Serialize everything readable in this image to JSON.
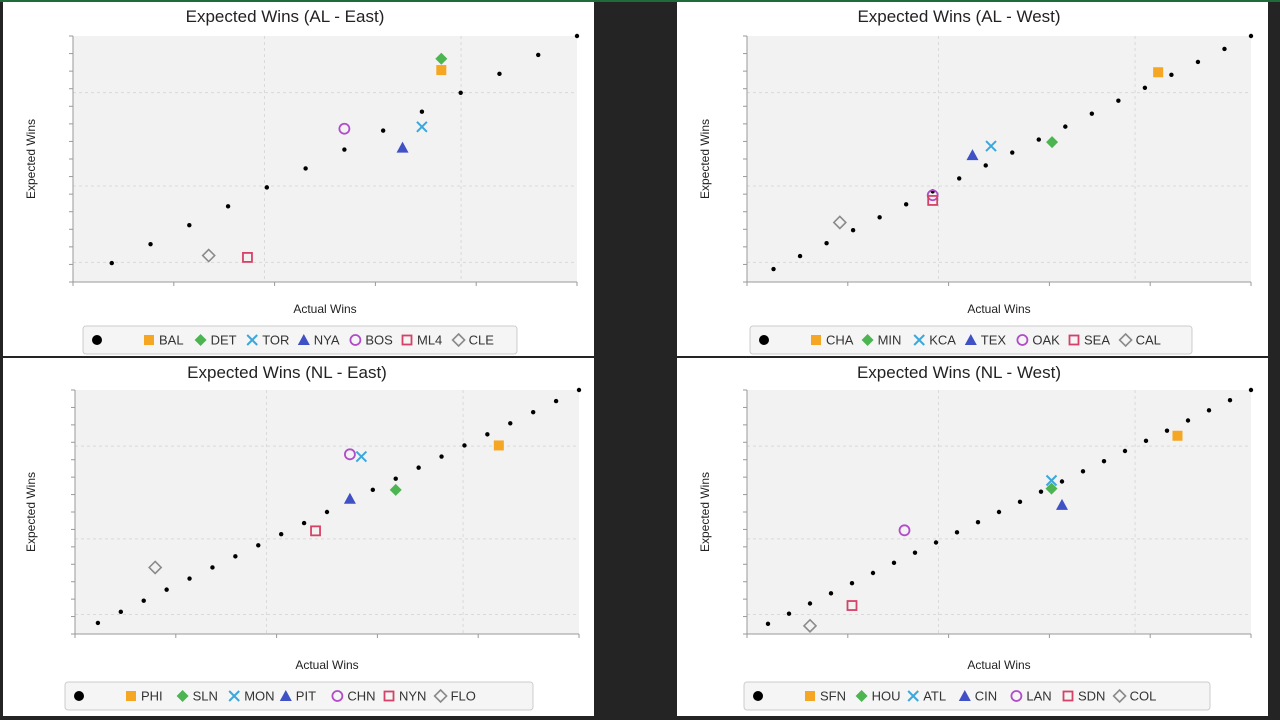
{
  "colors": {
    "background": "#ffffff",
    "plot_area": "#f2f2f2",
    "grid": "#d9d9d9",
    "dots": "#000000",
    "legend_border": "#cccccc",
    "legend_bg": "#f5f5f5",
    "series": {
      "square": "#f5a623",
      "diamond": "#4cb552",
      "x": "#3aa7dd",
      "triangle": "#3f51c5",
      "circle": "#b04cc8",
      "hollow_square": "#d64267",
      "hollow_diamond": "#8a8a8a"
    }
  },
  "chart_data": [
    {
      "type": "scatter",
      "title": "Expected Wins (AL - East)",
      "xlabel": "Actual Wins",
      "ylabel": "Expected Wins",
      "xlim": [
        0,
        13
      ],
      "ylim": [
        0,
        13
      ],
      "grid": true,
      "legend_position": "bottom",
      "reference": {
        "x": [
          1,
          2,
          3,
          4,
          5,
          6,
          7,
          8,
          9,
          10,
          11,
          12,
          13
        ],
        "y": [
          1,
          2,
          3,
          4,
          5,
          6,
          7,
          8,
          9,
          10,
          11,
          12,
          13
        ]
      },
      "series": [
        {
          "name": "BAL",
          "marker": "square",
          "x": 9.5,
          "y": 11.2
        },
        {
          "name": "DET",
          "marker": "diamond",
          "x": 9.5,
          "y": 11.8
        },
        {
          "name": "TOR",
          "marker": "x",
          "x": 9.0,
          "y": 8.2
        },
        {
          "name": "NYA",
          "marker": "triangle",
          "x": 8.5,
          "y": 7.1
        },
        {
          "name": "BOS",
          "marker": "circle",
          "x": 7.0,
          "y": 8.1
        },
        {
          "name": "ML4",
          "marker": "hollow_square",
          "x": 4.5,
          "y": 1.3
        },
        {
          "name": "CLE",
          "marker": "hollow_diamond",
          "x": 3.5,
          "y": 1.4
        }
      ]
    },
    {
      "type": "scatter",
      "title": "Expected Wins (AL - West)",
      "xlabel": "Actual Wins",
      "ylabel": "Expected Wins",
      "xlim": [
        0,
        19
      ],
      "ylim": [
        0,
        19
      ],
      "grid": true,
      "legend_position": "bottom",
      "reference": {
        "x": [
          1,
          2,
          3,
          4,
          5,
          6,
          7,
          8,
          9,
          10,
          11,
          12,
          13,
          14,
          15,
          16,
          17,
          18,
          19
        ],
        "y": [
          1,
          2,
          3,
          4,
          5,
          6,
          7,
          8,
          9,
          10,
          11,
          12,
          13,
          14,
          15,
          16,
          17,
          18,
          19
        ]
      },
      "series": [
        {
          "name": "CHA",
          "marker": "square",
          "x": 15.5,
          "y": 16.2
        },
        {
          "name": "MIN",
          "marker": "diamond",
          "x": 11.5,
          "y": 10.8
        },
        {
          "name": "KCA",
          "marker": "x",
          "x": 9.2,
          "y": 10.5
        },
        {
          "name": "TEX",
          "marker": "triangle",
          "x": 8.5,
          "y": 9.8
        },
        {
          "name": "OAK",
          "marker": "circle",
          "x": 7.0,
          "y": 6.7
        },
        {
          "name": "SEA",
          "marker": "hollow_square",
          "x": 7.0,
          "y": 6.3
        },
        {
          "name": "CAL",
          "marker": "hollow_diamond",
          "x": 3.5,
          "y": 4.6
        }
      ]
    },
    {
      "type": "scatter",
      "title": "Expected Wins (NL - East)",
      "xlabel": "Actual Wins",
      "ylabel": "Expected Wins",
      "xlim": [
        0,
        22
      ],
      "ylim": [
        0,
        22
      ],
      "grid": true,
      "legend_position": "bottom",
      "reference": {
        "x": [
          1,
          2,
          3,
          4,
          5,
          6,
          7,
          8,
          9,
          10,
          11,
          12,
          13,
          14,
          15,
          16,
          17,
          18,
          19,
          20,
          21,
          22
        ],
        "y": [
          1,
          2,
          3,
          4,
          5,
          6,
          7,
          8,
          9,
          10,
          11,
          12,
          13,
          14,
          15,
          16,
          17,
          18,
          19,
          20,
          21,
          22
        ]
      },
      "series": [
        {
          "name": "PHI",
          "marker": "square",
          "x": 18.5,
          "y": 17.0
        },
        {
          "name": "SLN",
          "marker": "diamond",
          "x": 14.0,
          "y": 13.0
        },
        {
          "name": "MON",
          "marker": "x",
          "x": 12.5,
          "y": 16.0
        },
        {
          "name": "PIT",
          "marker": "triangle",
          "x": 12.0,
          "y": 12.2
        },
        {
          "name": "CHN",
          "marker": "circle",
          "x": 12.0,
          "y": 16.2
        },
        {
          "name": "NYN",
          "marker": "hollow_square",
          "x": 10.5,
          "y": 9.3
        },
        {
          "name": "FLO",
          "marker": "hollow_diamond",
          "x": 3.5,
          "y": 6.0
        }
      ]
    },
    {
      "type": "scatter",
      "title": "Expected Wins (NL - West)",
      "xlabel": "Actual Wins",
      "ylabel": "Expected Wins",
      "xlim": [
        0,
        24
      ],
      "ylim": [
        0,
        24
      ],
      "grid": true,
      "legend_position": "bottom",
      "reference": {
        "x": [
          1,
          2,
          3,
          4,
          5,
          6,
          7,
          8,
          9,
          10,
          11,
          12,
          13,
          14,
          15,
          16,
          17,
          18,
          19,
          20,
          21,
          22,
          23,
          24
        ],
        "y": [
          1,
          2,
          3,
          4,
          5,
          6,
          7,
          8,
          9,
          10,
          11,
          12,
          13,
          14,
          15,
          16,
          17,
          18,
          19,
          20,
          21,
          22,
          23,
          24
        ]
      },
      "series": [
        {
          "name": "SFN",
          "marker": "square",
          "x": 20.5,
          "y": 19.5
        },
        {
          "name": "HOU",
          "marker": "diamond",
          "x": 14.5,
          "y": 14.3
        },
        {
          "name": "ATL",
          "marker": "x",
          "x": 14.5,
          "y": 15.1
        },
        {
          "name": "CIN",
          "marker": "triangle",
          "x": 15.0,
          "y": 12.7
        },
        {
          "name": "LAN",
          "marker": "circle",
          "x": 7.5,
          "y": 10.2
        },
        {
          "name": "SDN",
          "marker": "hollow_square",
          "x": 5.0,
          "y": 2.8
        },
        {
          "name": "COL",
          "marker": "hollow_diamond",
          "x": 3.0,
          "y": 0.8
        }
      ]
    }
  ]
}
